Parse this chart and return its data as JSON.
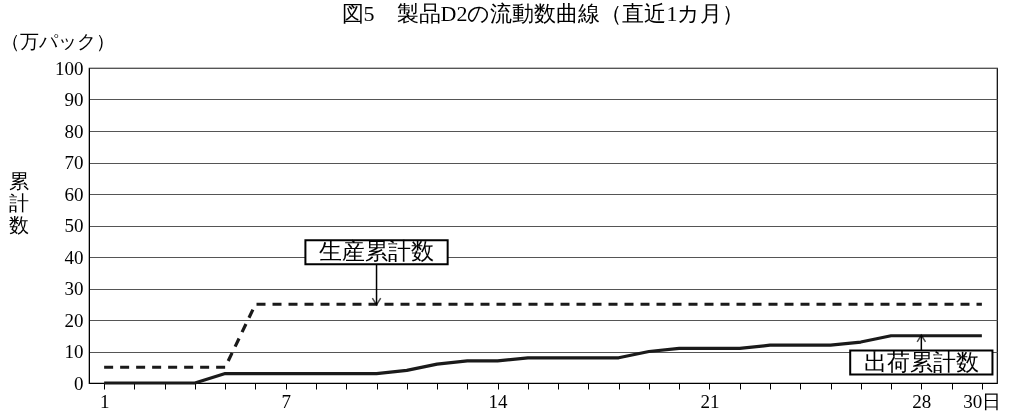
{
  "chart_data": {
    "type": "line",
    "title": "図5　製品D2の流動数曲線（直近1カ月）",
    "ylabel": "累計数",
    "x": [
      1,
      2,
      3,
      4,
      5,
      6,
      7,
      8,
      9,
      10,
      11,
      12,
      13,
      14,
      15,
      16,
      17,
      18,
      19,
      20,
      21,
      22,
      23,
      24,
      25,
      26,
      27,
      28,
      29,
      30
    ],
    "series": [
      {
        "color": "#1a1a1a",
        "line_style": "dashed",
        "values": [
          5,
          5,
          5,
          5,
          5,
          25,
          25,
          25,
          25,
          25,
          25,
          25,
          25,
          25,
          25,
          25,
          25,
          25,
          25,
          25,
          25,
          25,
          25,
          25,
          25,
          25,
          25,
          25,
          25,
          25
        ]
      },
      {
        "color": "#1a1a1a",
        "line_style": "solid",
        "values": [
          0,
          0,
          0,
          0,
          3,
          3,
          3,
          3,
          3,
          3,
          4,
          6,
          7,
          7,
          8,
          8,
          8,
          8,
          10,
          11,
          11,
          11,
          12,
          12,
          12,
          13,
          15,
          15,
          15,
          15
        ]
      }
    ],
    "annotations": [
      "（万パック）",
      {
        "text": "生産累計数",
        "x": 10,
        "y": 25
      },
      {
        "text": "出荷累計数",
        "x": 28,
        "y": 15
      }
    ],
    "xlim": [
      0.5,
      30.5
    ],
    "xticks": [
      1,
      {
        "value": 2,
        "label": null
      },
      {
        "value": 3,
        "label": null
      },
      {
        "value": 4,
        "label": null
      },
      {
        "value": 5,
        "label": null
      },
      {
        "value": 6,
        "label": null
      },
      7,
      {
        "value": 8,
        "label": null
      },
      {
        "value": 9,
        "label": null
      },
      {
        "value": 10,
        "label": null
      },
      {
        "value": 11,
        "label": null
      },
      {
        "value": 12,
        "label": null
      },
      {
        "value": 13,
        "label": null
      },
      14,
      {
        "value": 15,
        "label": null
      },
      {
        "value": 16,
        "label": null
      },
      {
        "value": 17,
        "label": null
      },
      {
        "value": 18,
        "label": null
      },
      {
        "value": 19,
        "label": null
      },
      {
        "value": 20,
        "label": null
      },
      21,
      {
        "value": 22,
        "label": null
      },
      {
        "value": 23,
        "label": null
      },
      {
        "value": 24,
        "label": null
      },
      {
        "value": 25,
        "label": null
      },
      {
        "value": 26,
        "label": null
      },
      {
        "value": 27,
        "label": null
      },
      28,
      {
        "value": 29,
        "label": null
      },
      {
        "value": 30,
        "label": "30日"
      }
    ],
    "ylim": [
      0,
      100
    ],
    "yticks": [
      0,
      10,
      20,
      30,
      40,
      50,
      60,
      70,
      80,
      90,
      100
    ],
    "grid": "y",
    "marker": "none"
  }
}
